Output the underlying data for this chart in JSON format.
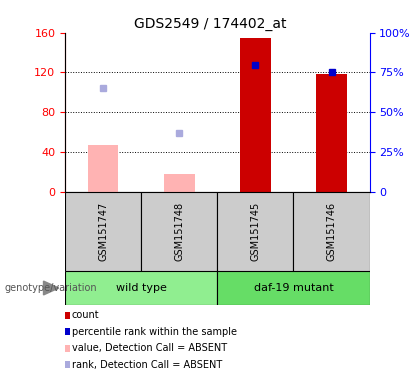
{
  "title": "GDS2549 / 174402_at",
  "samples": [
    "GSM151747",
    "GSM151748",
    "GSM151745",
    "GSM151746"
  ],
  "groups": [
    {
      "label": "wild type",
      "color": "#90EE90",
      "indices": [
        0,
        1
      ]
    },
    {
      "label": "daf-19 mutant",
      "color": "#66DD66",
      "indices": [
        2,
        3
      ]
    }
  ],
  "count_values": [
    null,
    null,
    155,
    118
  ],
  "percentile_values": [
    null,
    null,
    80,
    75
  ],
  "absent_value": [
    47,
    18,
    null,
    null
  ],
  "absent_rank": [
    65,
    37,
    null,
    null
  ],
  "ylim_left": [
    0,
    160
  ],
  "ylim_right": [
    0,
    100
  ],
  "yticks_left": [
    0,
    40,
    80,
    120,
    160
  ],
  "yticks_right": [
    0,
    25,
    50,
    75,
    100
  ],
  "bar_color_count": "#cc0000",
  "bar_color_absent_value": "#ffb3b3",
  "marker_color_percentile": "#0000cc",
  "marker_color_absent_rank": "#aaaadd",
  "legend_items": [
    {
      "label": "count",
      "color": "#cc0000"
    },
    {
      "label": "percentile rank within the sample",
      "color": "#0000cc"
    },
    {
      "label": "value, Detection Call = ABSENT",
      "color": "#ffb3b3"
    },
    {
      "label": "rank, Detection Call = ABSENT",
      "color": "#aaaadd"
    }
  ],
  "genotype_label": "genotype/variation",
  "bar_width": 0.4
}
